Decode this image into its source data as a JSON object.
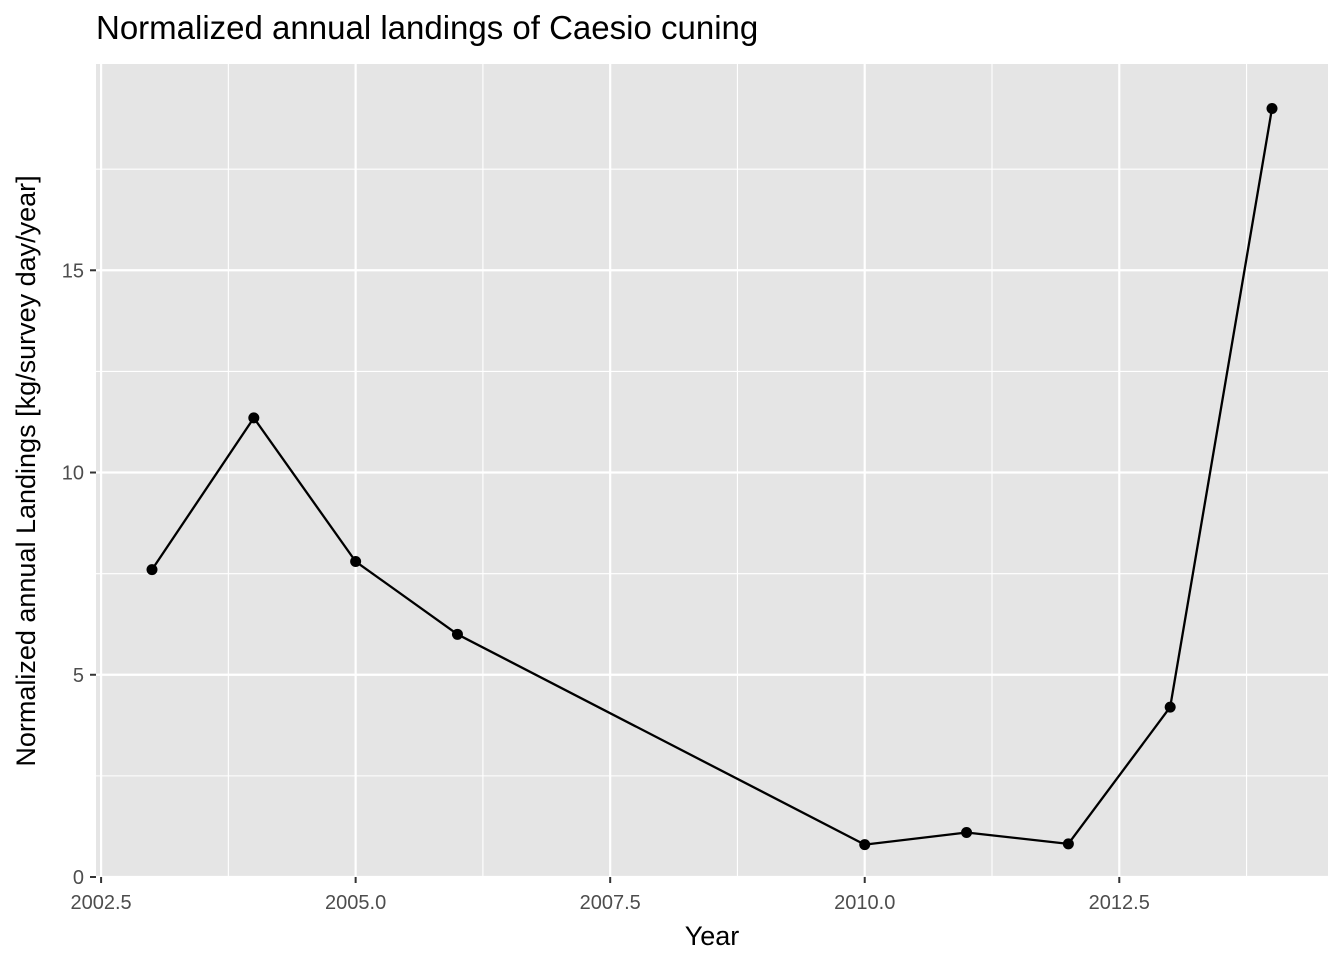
{
  "chart_data": {
    "type": "line",
    "title": "Normalized annual landings of Caesio cuning",
    "xlabel": "Year",
    "ylabel": "Normalized annual Landings [kg/survey day/year]",
    "x": [
      2003,
      2004,
      2005,
      2006,
      2010,
      2011,
      2012,
      2013,
      2014
    ],
    "series": [
      {
        "values": [
          7.6,
          11.35,
          7.8,
          6.0,
          0.8,
          1.1,
          0.82,
          4.2,
          19.0
        ]
      }
    ],
    "xlim": [
      2002.45,
      2014.55
    ],
    "ylim": [
      0,
      20.1
    ],
    "xticks": [
      2002.5,
      2005.0,
      2007.5,
      2010.0,
      2012.5
    ],
    "xtick_labels": [
      "2002.5",
      "2005.0",
      "2007.5",
      "2010.0",
      "2012.5"
    ],
    "yticks": [
      0,
      5,
      10,
      15
    ],
    "ytick_labels": [
      "0",
      "5",
      "10",
      "15"
    ],
    "grid": true,
    "colors": {
      "panel": "#e5e5e5",
      "grid": "#ffffff",
      "line": "#000000",
      "point": "#000000",
      "tick_text": "#4d4d4d"
    }
  }
}
